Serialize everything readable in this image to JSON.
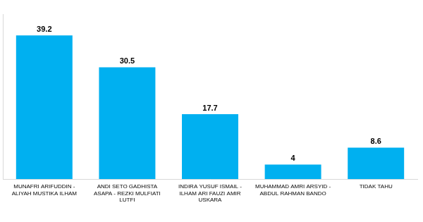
{
  "chart_data": {
    "type": "bar",
    "categories": [
      "MUNAFRI ARIFUDDIN - ALIYAH MUSTIKA ILHAM",
      "ANDI SETO GADHISTA ASAPA - REZKI MULFIATI LUTFI",
      "INDIRA YUSUF ISMAIL - ILHAM ARI FAUZI AMIR USKARA",
      "MUHAMMAD AMRI ARSYID - ABDUL RAHMAN BANDO",
      "TIDAK TAHU"
    ],
    "values": [
      39.2,
      30.5,
      17.7,
      4,
      8.6
    ],
    "color": "#00b0f0",
    "ylim": [
      0,
      45
    ],
    "yticks": [],
    "grid": false,
    "data_labels": true,
    "tick_labels": "x"
  }
}
